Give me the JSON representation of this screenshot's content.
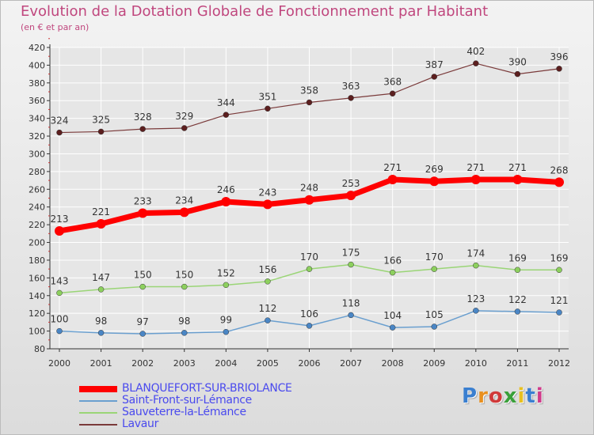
{
  "title": "Evolution de la Dotation Globale de Fonctionnement par Habitant",
  "subtitle": "(en € et par an)",
  "logo": "Proxiti",
  "colors": {
    "title": "#c0477e",
    "legend_text": "#4a4aee",
    "axis": "#333333",
    "grid": "#ffffff"
  },
  "chart_data": {
    "type": "line",
    "title": "Evolution de la Dotation Globale de Fonctionnement par Habitant",
    "subtitle": "(en € et par an)",
    "x": [
      "2000",
      "2001",
      "2002",
      "2003",
      "2004",
      "2005",
      "2006",
      "2007",
      "2008",
      "2009",
      "2010",
      "2011",
      "2012"
    ],
    "ylim": [
      80,
      420
    ],
    "yticks": [
      80,
      100,
      120,
      140,
      160,
      180,
      200,
      220,
      240,
      260,
      280,
      300,
      320,
      340,
      360,
      380,
      400,
      420
    ],
    "grid": true,
    "legend_position": "bottom-left",
    "series": [
      {
        "name": "BLANQUEFORT-SUR-BRIOLANCE",
        "color": "#ff0000",
        "marker": "#ff0000",
        "width": 7,
        "values": [
          213,
          221,
          233,
          234,
          246,
          243,
          248,
          253,
          271,
          269,
          271,
          271,
          268
        ]
      },
      {
        "name": "Saint-Front-sur-Lémance",
        "color": "#6a9fcf",
        "marker": "#4a86c5",
        "width": 1.5,
        "values": [
          100,
          98,
          97,
          98,
          99,
          112,
          106,
          118,
          104,
          105,
          123,
          122,
          121
        ]
      },
      {
        "name": "Sauveterre-la-Lémance",
        "color": "#9ad576",
        "marker": "#8dd05e",
        "width": 1.5,
        "values": [
          143,
          147,
          150,
          150,
          152,
          156,
          170,
          175,
          166,
          170,
          174,
          169,
          169
        ]
      },
      {
        "name": "Lavaur",
        "color": "#7a3a3a",
        "marker": "#5c1f1f",
        "width": 1.2,
        "values": [
          324,
          325,
          328,
          329,
          344,
          351,
          358,
          363,
          368,
          387,
          402,
          390,
          396
        ]
      }
    ]
  }
}
